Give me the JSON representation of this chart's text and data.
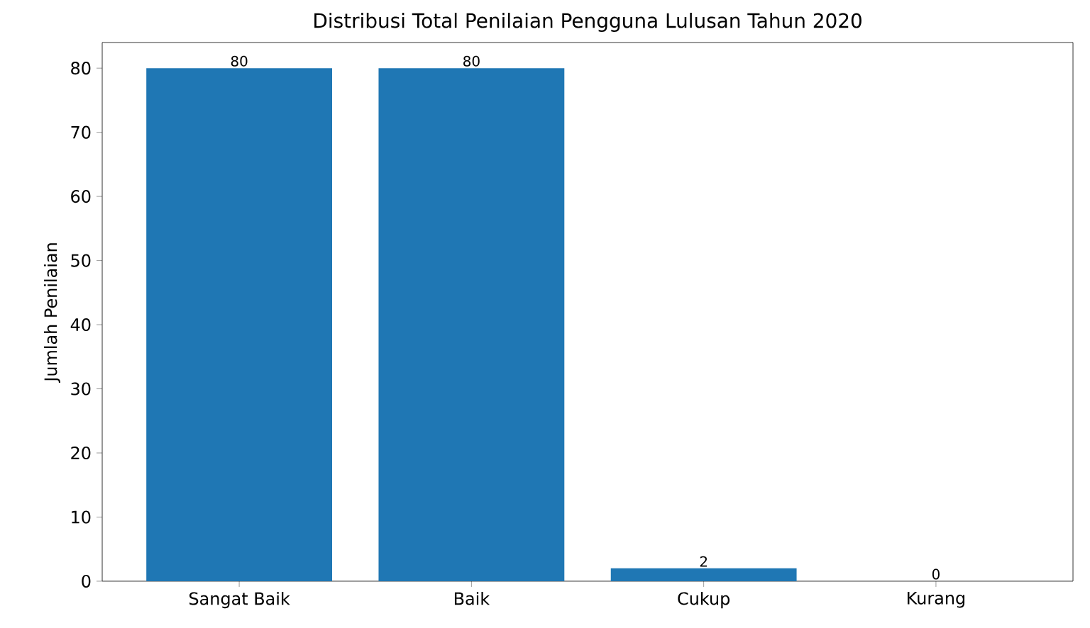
{
  "chart_data": {
    "type": "bar",
    "title": "Distribusi Total Penilaian Pengguna Lulusan Tahun 2020",
    "ylabel": "Jumlah Penilaian",
    "categories": [
      "Sangat Baik",
      "Baik",
      "Cukup",
      "Kurang"
    ],
    "values": [
      80,
      80,
      2,
      0
    ],
    "color": "#1f77b4",
    "ylim": [
      0,
      84
    ],
    "yticks": [
      0,
      10,
      20,
      30,
      40,
      50,
      60,
      70,
      80
    ],
    "data_labels": true,
    "grid": false
  }
}
